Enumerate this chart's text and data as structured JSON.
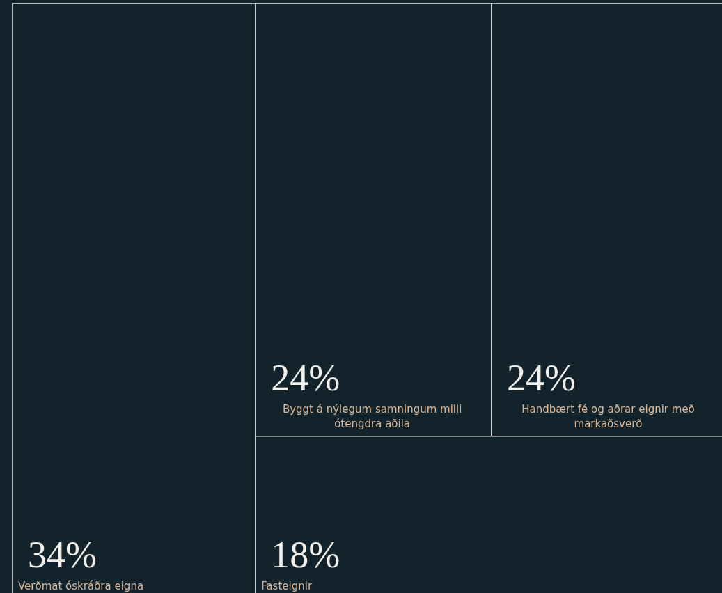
{
  "chart_data": {
    "type": "other",
    "categories": [
      "Verðmat óskráðra eigna",
      "Byggt á nýlegum samningum milli ótengdra aðila",
      "Handbært fé og aðrar eignir með markaðsverð",
      "Fasteignir"
    ],
    "values": [
      34,
      24,
      24,
      18
    ],
    "value_labels": [
      "34%",
      "24%",
      "24%",
      "18%"
    ],
    "color": "#12232b"
  }
}
